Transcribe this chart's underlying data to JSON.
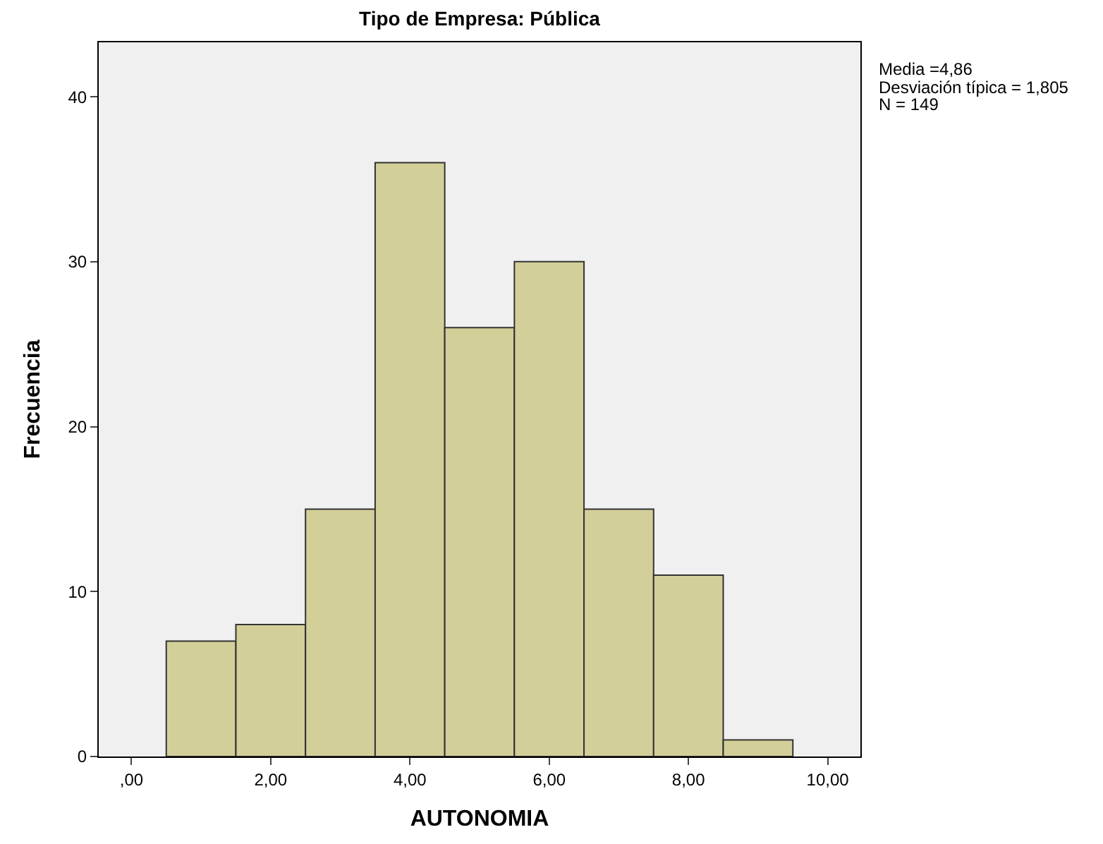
{
  "chart_data": {
    "type": "histogram",
    "title": "Tipo de Empresa: Pública",
    "xlabel": "AUTONOMIA",
    "ylabel": "Frecuencia",
    "bins": [
      0.5,
      1.5,
      2.5,
      3.5,
      4.5,
      5.5,
      6.5,
      7.5,
      8.5,
      9.5
    ],
    "values": [
      7,
      8,
      15,
      36,
      26,
      30,
      15,
      11,
      1
    ],
    "color": "#d3cf99",
    "xlim": [
      -0.47,
      10.47
    ],
    "xticks": [
      {
        "value": 0,
        "label": ",00"
      },
      {
        "value": 2,
        "label": "2,00"
      },
      {
        "value": 4,
        "label": "4,00"
      },
      {
        "value": 6,
        "label": "6,00"
      },
      {
        "value": 8,
        "label": "8,00"
      },
      {
        "value": 10,
        "label": "10,00"
      }
    ],
    "ylim": [
      0,
      43.3
    ],
    "yticks": [
      0,
      10,
      20,
      30,
      40
    ],
    "grid": false,
    "annotations": [
      "Media =4,86",
      "Desviación típica = 1,805",
      "N = 149"
    ]
  }
}
